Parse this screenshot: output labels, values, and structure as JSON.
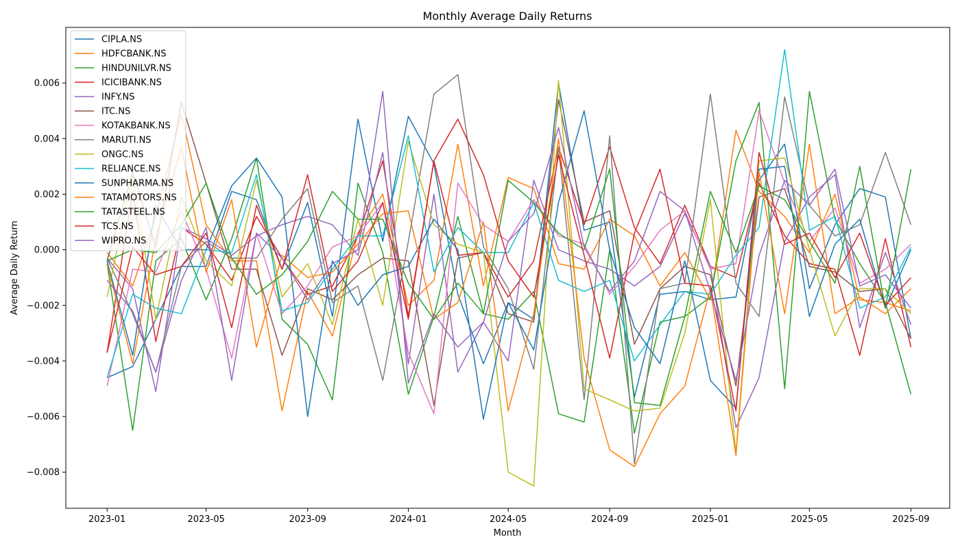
{
  "chart_data": {
    "type": "line",
    "title": "Monthly Average Daily Returns",
    "xlabel": "Month",
    "ylabel": "Average Daily Return",
    "xlim": [
      "2022-11-12",
      "2025-10-18"
    ],
    "ylim": [
      -0.0093,
      0.008
    ],
    "x_ticks": [
      "2023-01",
      "2023-05",
      "2023-09",
      "2024-01",
      "2024-05",
      "2024-09",
      "2025-01",
      "2025-05",
      "2025-09"
    ],
    "y_ticks": [
      -0.008,
      -0.006,
      -0.004,
      -0.002,
      0.0,
      0.002,
      0.004,
      0.006
    ],
    "y_tick_labels": [
      "−0.008",
      "−0.006",
      "−0.004",
      "−0.002",
      "0.000",
      "0.002",
      "0.004",
      "0.006"
    ],
    "grid": false,
    "legend_position": "top-left",
    "x": [
      "2023-01",
      "2023-02",
      "2023-03",
      "2023-04",
      "2023-05",
      "2023-06",
      "2023-07",
      "2023-08",
      "2023-09",
      "2023-10",
      "2023-11",
      "2023-12",
      "2024-01",
      "2024-02",
      "2024-03",
      "2024-04",
      "2024-05",
      "2024-06",
      "2024-07",
      "2024-08",
      "2024-09",
      "2024-10",
      "2024-11",
      "2024-12",
      "2025-01",
      "2025-02",
      "2025-03",
      "2025-04",
      "2025-05",
      "2025-06",
      "2025-07",
      "2025-08",
      "2025-09"
    ],
    "series": [
      {
        "name": "CIPLA.NS",
        "color": "#1f77b4",
        "values": [
          -0.0046,
          -0.0042,
          -0.0025,
          -0.0006,
          -0.0006,
          0.0021,
          0.0018,
          -0.0007,
          0.0017,
          -0.0024,
          0.0047,
          0.0003,
          0.0048,
          0.0031,
          -0.0016,
          -0.0041,
          -0.0019,
          -0.0025,
          0.006,
          0.0007,
          0.001,
          -0.0053,
          -0.0016,
          -0.0015,
          -0.0018,
          -0.0017,
          0.0025,
          0.0038,
          -0.0014,
          0.0009,
          0.0022,
          0.0019,
          -0.0032
        ]
      },
      {
        "name": "HDFCBANK.NS",
        "color": "#ff7f0e",
        "values": [
          -0.0001,
          -0.0013,
          0.0012,
          0.0049,
          0.0009,
          -0.0004,
          -0.0004,
          -0.0058,
          -0.0015,
          -0.0031,
          0.0006,
          0.002,
          -0.002,
          -0.0011,
          0.0038,
          -0.0013,
          0.0026,
          0.0022,
          -0.0005,
          -0.0007,
          0.0011,
          0.0005,
          -0.0013,
          -0.0001,
          -0.0018,
          0.0043,
          0.0021,
          0.0012,
          -0.0001,
          0.002,
          -0.0018,
          -0.0019,
          -0.0022
        ]
      },
      {
        "name": "HINDUNILVR.NS",
        "color": "#2ca02c",
        "values": [
          -0.0005,
          -0.0065,
          -0.0004,
          0.0004,
          -0.0018,
          0.0004,
          0.0033,
          -0.0025,
          -0.0034,
          -0.0054,
          0.0024,
          -0.0001,
          -0.0052,
          -0.0024,
          0.0012,
          -0.0023,
          -0.0025,
          -0.0015,
          -0.0059,
          -0.0062,
          0.0,
          -0.0066,
          -0.0026,
          -0.0024,
          -0.0017,
          0.0032,
          0.0053,
          -0.005,
          0.0057,
          0.0011,
          -0.0005,
          -0.0019,
          -0.0052
        ]
      },
      {
        "name": "ICICIBANK.NS",
        "color": "#d62728",
        "values": [
          -0.0037,
          0.0021,
          -0.0033,
          0.0008,
          0.0002,
          -0.0011,
          0.0012,
          -0.0003,
          -0.0016,
          -0.0013,
          0.0005,
          0.0032,
          -0.0024,
          0.0032,
          -0.0002,
          -0.0001,
          -0.0017,
          -0.0004,
          0.0037,
          0.0009,
          0.0037,
          0.0008,
          -0.0005,
          0.0016,
          -0.0006,
          -0.001,
          0.0024,
          0.0005,
          -0.0005,
          -0.0007,
          -0.0038,
          0.0004,
          -0.0035
        ]
      },
      {
        "name": "INFY.NS",
        "color": "#9467bd",
        "values": [
          -0.0003,
          -0.0014,
          -0.0051,
          0.0008,
          0.0004,
          -0.0002,
          0.0005,
          0.0009,
          0.0012,
          0.0009,
          -0.0002,
          0.0035,
          -0.0041,
          0.002,
          -0.0044,
          -0.0026,
          -0.004,
          0.0025,
          0.0,
          -0.0004,
          -0.0007,
          -0.0013,
          -0.0006,
          0.0013,
          -0.0006,
          -0.0064,
          -0.0046,
          0.0003,
          0.0019,
          0.0027,
          -0.0028,
          -0.0001,
          -0.0027
        ]
      },
      {
        "name": "ITC.NS",
        "color": "#8c564b",
        "values": [
          -0.0004,
          0.0028,
          0.0001,
          0.0053,
          0.0024,
          -0.0007,
          -0.0007,
          -0.0038,
          -0.0014,
          -0.0018,
          -0.0009,
          -0.0003,
          -0.0004,
          -0.0056,
          -0.0003,
          -0.0001,
          -0.0023,
          -0.0026,
          0.0054,
          0.001,
          0.0014,
          -0.0034,
          -0.0014,
          -0.0006,
          -0.0009,
          -0.0049,
          0.0019,
          0.0022,
          -0.0006,
          -0.0008,
          -0.0015,
          -0.0014,
          -0.0032
        ]
      },
      {
        "name": "KOTAKBANK.NS",
        "color": "#e377c2",
        "values": [
          -0.0049,
          -0.0007,
          -0.0008,
          0.0014,
          -0.0007,
          -0.0039,
          0.0006,
          -0.0023,
          -0.0013,
          0.0001,
          0.0005,
          0.0017,
          -0.0037,
          -0.0059,
          0.0024,
          0.0009,
          0.0003,
          0.0018,
          0.0005,
          0.0002,
          -0.0016,
          -0.0006,
          0.0007,
          0.0014,
          -0.0007,
          -0.0005,
          0.005,
          0.0024,
          0.0003,
          0.0015,
          -0.0012,
          -0.0007,
          0.0002
        ]
      },
      {
        "name": "MARUTI.NS",
        "color": "#7f7f7f",
        "values": [
          -0.0003,
          -0.0023,
          -0.0044,
          -0.0006,
          0.0003,
          -0.0003,
          -0.0003,
          0.0011,
          0.0022,
          -0.0019,
          -0.0013,
          -0.0047,
          0.0003,
          0.0056,
          0.0063,
          0.0001,
          -0.0014,
          -0.0043,
          0.0037,
          -0.0054,
          0.0041,
          -0.0077,
          -0.0014,
          -0.0012,
          0.0056,
          -0.0012,
          -0.0024,
          0.0055,
          0.0016,
          0.0005,
          0.0009,
          0.0035,
          0.0009
        ]
      },
      {
        "name": "ONGC.NS",
        "color": "#bcbd22",
        "values": [
          -0.0017,
          0.0027,
          -0.0025,
          0.0019,
          -0.0004,
          -0.0013,
          0.0025,
          -0.0017,
          -0.0005,
          -0.0027,
          0.0011,
          -0.002,
          0.0039,
          0.0009,
          0.0002,
          -0.0001,
          -0.008,
          -0.0085,
          0.0061,
          -0.005,
          -0.0054,
          -0.0058,
          -0.0057,
          -0.003,
          0.0018,
          -0.0073,
          0.0032,
          0.0033,
          0.0,
          -0.0031,
          -0.0014,
          -0.0014,
          -0.0023
        ]
      },
      {
        "name": "RELIANCE.NS",
        "color": "#17becf",
        "values": [
          -0.0046,
          -0.0016,
          -0.0021,
          -0.0023,
          0.0,
          -0.0001,
          0.0027,
          -0.0022,
          -0.0019,
          -0.0007,
          0.0005,
          0.0005,
          0.0041,
          -0.0008,
          0.0008,
          -0.0001,
          -0.0001,
          0.0017,
          -0.0011,
          -0.0015,
          -0.0011,
          -0.004,
          -0.0027,
          -0.0015,
          -0.0016,
          -0.0002,
          0.0008,
          0.0072,
          0.0007,
          0.0012,
          -0.0021,
          -0.0017,
          0.0001
        ]
      },
      {
        "name": "SUNPHARMA.NS",
        "color": "#1f77b4",
        "values": [
          -0.0004,
          -0.0038,
          0.0016,
          0.0,
          0.0,
          0.0023,
          0.0033,
          0.0019,
          -0.006,
          -0.0004,
          -0.002,
          -0.0009,
          -0.0006,
          0.0011,
          0.0,
          -0.0061,
          -0.0019,
          -0.0036,
          0.0017,
          0.005,
          0.0,
          -0.0028,
          -0.0041,
          -0.0004,
          -0.0047,
          -0.0057,
          0.0029,
          0.003,
          -0.0024,
          0.0002,
          0.0011,
          -0.0021,
          0.0
        ]
      },
      {
        "name": "TATAMOTORS.NS",
        "color": "#ff7f0e",
        "values": [
          -0.0005,
          -0.0041,
          0.0004,
          0.0037,
          -0.0008,
          0.0018,
          -0.0035,
          -0.0002,
          -0.001,
          -0.0008,
          0.0002,
          0.0013,
          0.0014,
          -0.0025,
          -0.0019,
          0.001,
          -0.0058,
          -0.0023,
          0.004,
          -0.0039,
          -0.0072,
          -0.0078,
          -0.0059,
          -0.0049,
          -0.0014,
          -0.0074,
          0.0028,
          -0.0023,
          0.0038,
          -0.0023,
          -0.0017,
          -0.0023,
          -0.0014
        ]
      },
      {
        "name": "TATASTEEL.NS",
        "color": "#2ca02c",
        "values": [
          -0.0004,
          0.0,
          -0.0001,
          0.0009,
          0.0024,
          -0.0003,
          -0.0016,
          -0.0009,
          0.0003,
          0.0021,
          0.0011,
          0.0011,
          -0.0012,
          -0.0025,
          -0.0012,
          -0.0023,
          0.0025,
          0.0017,
          0.0006,
          0.0,
          0.0029,
          -0.0055,
          -0.0056,
          -0.0024,
          0.0021,
          -0.0001,
          0.0023,
          0.0018,
          0.0003,
          -0.0012,
          0.003,
          -0.0021,
          0.0029
        ]
      },
      {
        "name": "TCS.NS",
        "color": "#d62728",
        "values": [
          -0.0037,
          0.0001,
          -0.0009,
          -0.0006,
          0.0006,
          -0.0028,
          0.0016,
          -0.0007,
          0.0027,
          -0.0015,
          -0.0004,
          0.0017,
          -0.0025,
          0.0032,
          0.0047,
          0.0027,
          -0.0004,
          -0.0017,
          0.0034,
          -0.0002,
          -0.0039,
          0.0006,
          0.0029,
          -0.0012,
          -0.0013,
          -0.0058,
          0.0035,
          0.0002,
          0.0006,
          -0.001,
          0.0006,
          -0.002,
          -0.001
        ]
      },
      {
        "name": "WIPRO.NS",
        "color": "#9467bd",
        "values": [
          -0.0011,
          -0.0022,
          -0.0044,
          -0.0011,
          0.0008,
          -0.0047,
          0.0006,
          -0.0003,
          -0.0018,
          -0.0005,
          0.0,
          0.0057,
          -0.0048,
          -0.0023,
          -0.0035,
          -0.0026,
          0.0003,
          0.0013,
          0.0044,
          0.0001,
          -0.0015,
          -0.0004,
          0.0021,
          0.0014,
          -0.0015,
          -0.0047,
          -0.0002,
          0.0025,
          0.0016,
          0.0029,
          -0.0013,
          -0.0009,
          -0.0021
        ]
      }
    ]
  }
}
